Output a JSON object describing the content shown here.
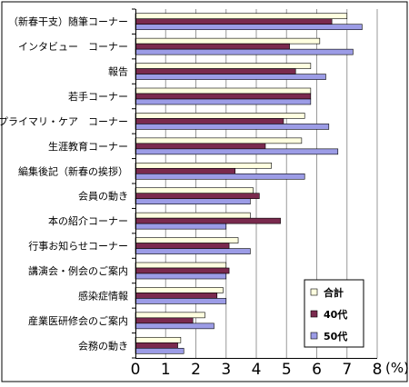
{
  "chart_data": {
    "type": "bar",
    "orientation": "horizontal",
    "categories": [
      "（新春干支）随筆コーナー",
      "インタビュー　コーナー",
      "報告",
      "若手コーナー",
      "プライマリ・ケア　コーナー",
      "生涯教育コーナー",
      "編集後記（新春の挨拶）",
      "会員の動き",
      "本の紹介コーナー",
      "行事お知らせコーナー",
      "講演会・例会のご案内",
      "感染症情報",
      "産業医研修会のご案内",
      "会務の動き"
    ],
    "series": [
      {
        "name": "合計",
        "color": "#ffffe0",
        "values": [
          7.0,
          6.1,
          5.8,
          5.8,
          5.6,
          5.5,
          4.5,
          3.9,
          3.8,
          3.4,
          3.0,
          2.9,
          2.3,
          1.5
        ]
      },
      {
        "name": "40代",
        "color": "#7a2a4e",
        "values": [
          6.5,
          5.1,
          5.3,
          5.8,
          4.9,
          4.3,
          3.3,
          4.1,
          4.8,
          3.1,
          3.1,
          2.7,
          1.9,
          1.4
        ]
      },
      {
        "name": "50代",
        "color": "#9c9ce6",
        "values": [
          7.5,
          7.2,
          6.3,
          5.8,
          6.4,
          6.7,
          5.6,
          3.8,
          3.0,
          3.8,
          3.0,
          3.0,
          2.6,
          1.6
        ]
      }
    ],
    "x_ticks": [
      "0",
      "1",
      "2",
      "3",
      "4",
      "5",
      "6",
      "7",
      "8"
    ],
    "x_unit": "(%)",
    "xlim": [
      0,
      8
    ],
    "legend_placement": "bottom-right",
    "grid": "vertical"
  }
}
